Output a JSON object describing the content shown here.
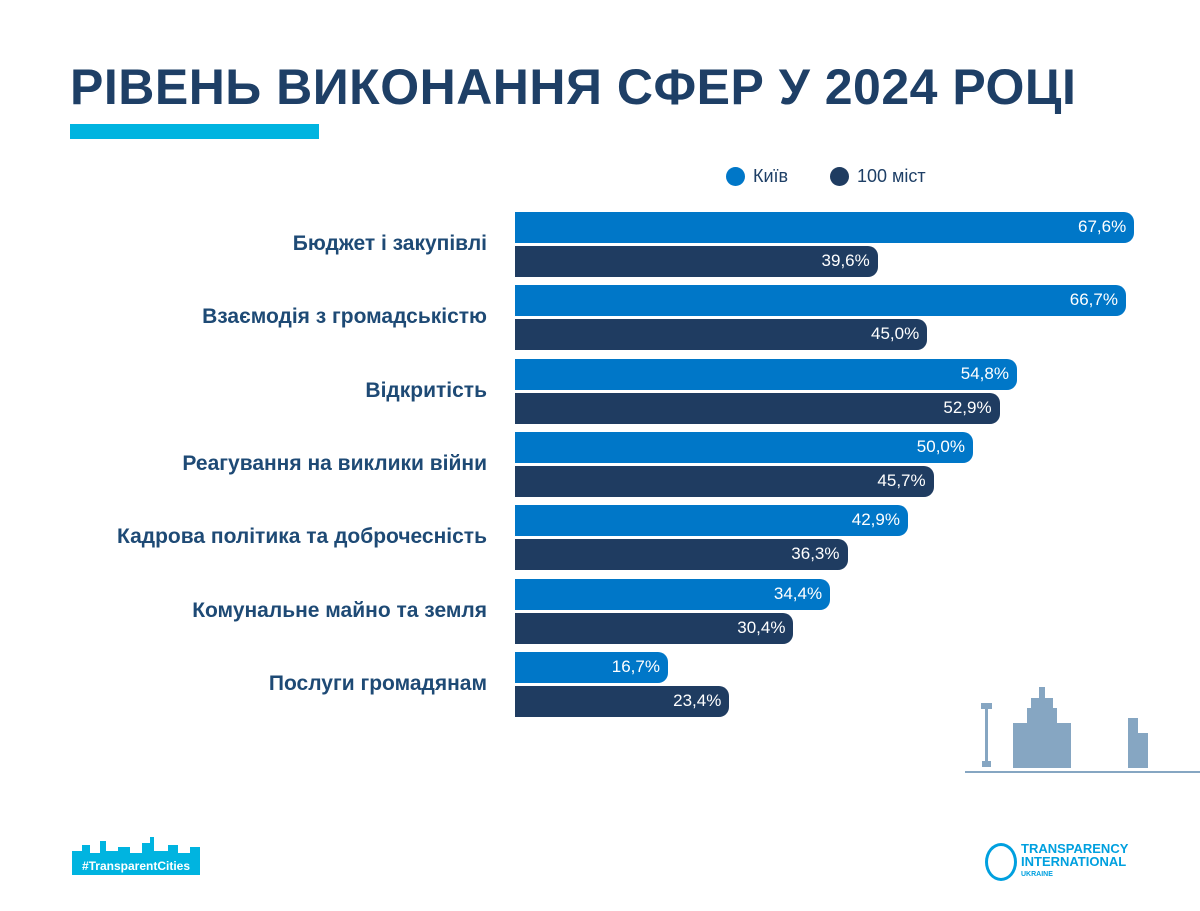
{
  "title": "РІВЕНЬ ВИКОНАННЯ СФЕР У 2024 РОЦІ",
  "colors": {
    "kyiv": "#0077c8",
    "cities": "#1f3c61",
    "accent": "#00b4e0"
  },
  "chart_data": {
    "type": "bar",
    "orientation": "horizontal",
    "title": "РІВЕНЬ ВИКОНАННЯ СФЕР У 2024 РОЦІ",
    "categories": [
      "Бюджет і закупівлі",
      "Взаємодія з громадськістю",
      "Відкритість",
      "Реагування на виклики війни",
      "Кадрова політика та доброчесність",
      "Комунальне майно та земля",
      "Послуги громадянам"
    ],
    "series": [
      {
        "name": "Київ",
        "values": [
          67.6,
          66.7,
          54.8,
          50.0,
          42.9,
          34.4,
          16.7
        ],
        "labels": [
          "67,6%",
          "66,7%",
          "54,8%",
          "50,0%",
          "42,9%",
          "34,4%",
          "16,7%"
        ]
      },
      {
        "name": "100 міст",
        "values": [
          39.6,
          45.0,
          52.9,
          45.7,
          36.3,
          30.4,
          23.4
        ],
        "labels": [
          "39,6%",
          "45,0%",
          "52,9%",
          "45,7%",
          "36,3%",
          "30,4%",
          "23,4%"
        ]
      }
    ],
    "legend": "top-right",
    "xlim": [
      0,
      100
    ],
    "grid": false
  },
  "footer": {
    "hashtag": "#TransparentCities",
    "logo": "TRANSPARENCY INTERNATIONAL UKRAINE"
  }
}
